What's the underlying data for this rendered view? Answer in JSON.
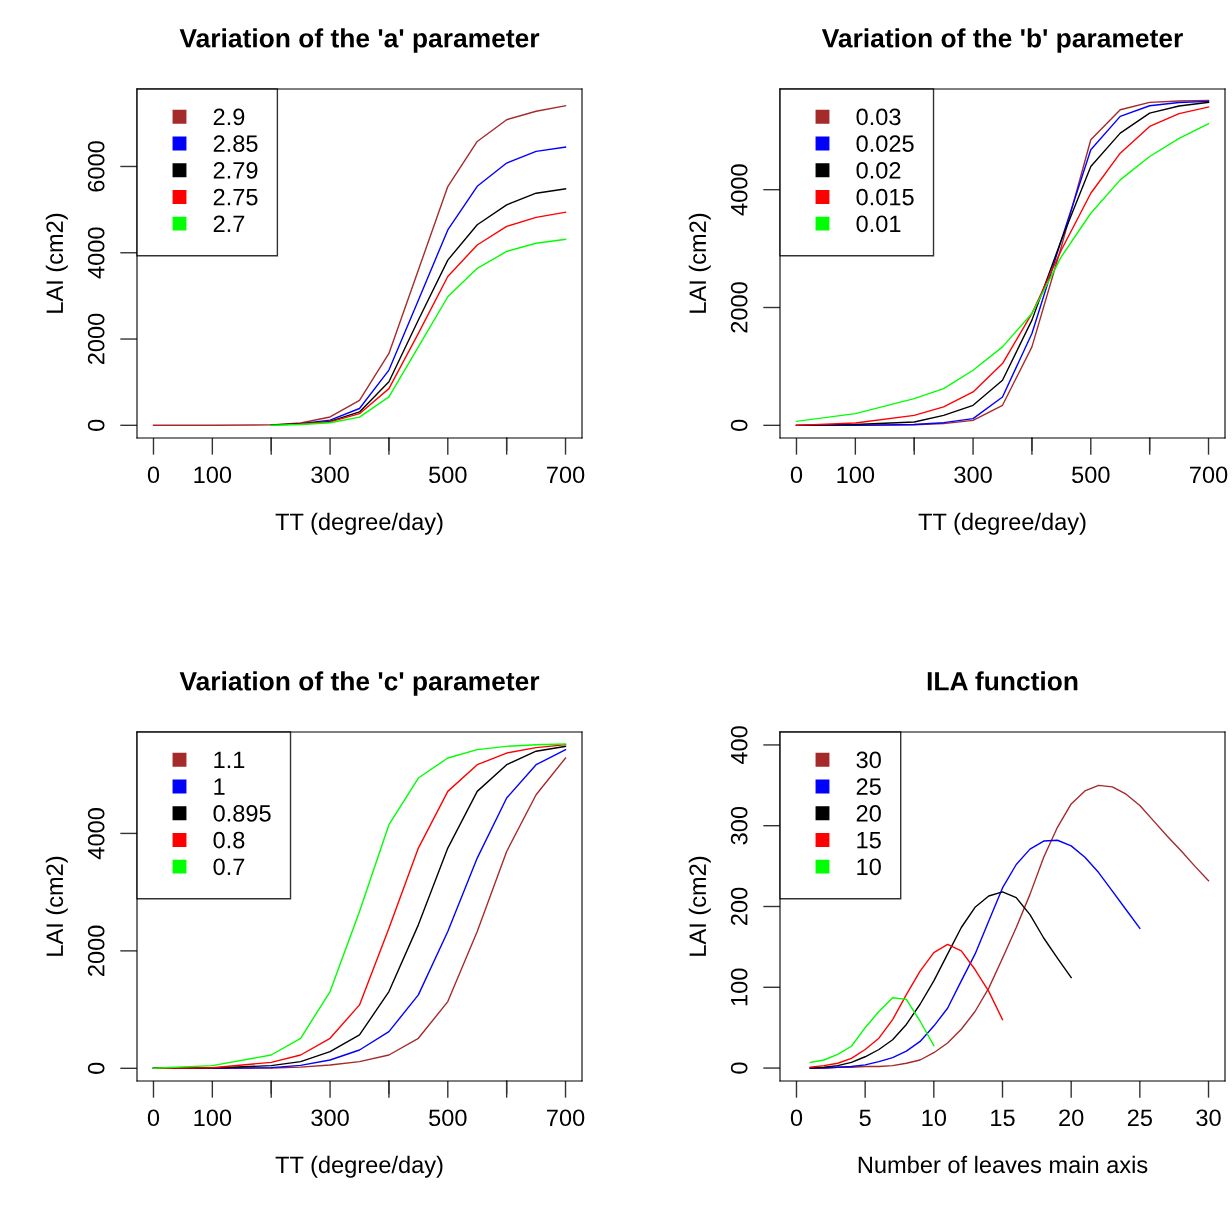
{
  "chart_data": [
    {
      "type": "line",
      "title": "Variation of the 'a' parameter",
      "xlabel": "TT (degree/day)",
      "ylabel": "LAI (cm2)",
      "legend": "top left",
      "grid": false,
      "x": [
        0,
        100,
        200,
        250,
        300,
        350,
        400,
        450,
        500,
        550,
        600,
        650,
        700
      ],
      "xlim": [
        -28,
        728
      ],
      "xticks": [
        0,
        100,
        {
          "value": 200,
          "label": null
        },
        300,
        {
          "value": 400,
          "label": null
        },
        500,
        {
          "value": 600,
          "label": null
        },
        700
      ],
      "ylim": [
        -294,
        7796
      ],
      "yticks": [
        0,
        2000,
        4000,
        6000
      ],
      "series": [
        {
          "name": "2.9",
          "color": "#a52a2a",
          "values": [
            0,
            0,
            10,
            54,
            194,
            580,
            1665,
            3600,
            5535,
            6580,
            7084,
            7280,
            7409
          ]
        },
        {
          "name": "2.85",
          "color": "#0000ff",
          "values": [
            null,
            null,
            null,
            40,
            120,
            390,
            1280,
            2900,
            4530,
            5540,
            6080,
            6350,
            6450
          ]
        },
        {
          "name": "2.79",
          "color": "#000000",
          "values": [
            null,
            null,
            10,
            30,
            90,
            310,
            1010,
            2440,
            3830,
            4650,
            5110,
            5380,
            5480
          ]
        },
        {
          "name": "2.75",
          "color": "#ff0000",
          "values": [
            null,
            null,
            null,
            30,
            80,
            270,
            850,
            2130,
            3450,
            4180,
            4610,
            4820,
            4940
          ]
        },
        {
          "name": "2.7",
          "color": "#00ff00",
          "values": [
            null,
            null,
            0,
            20,
            60,
            190,
            660,
            1820,
            2980,
            3640,
            4030,
            4220,
            4310
          ]
        }
      ]
    },
    {
      "type": "line",
      "title": "Variation of the 'b' parameter",
      "xlabel": "TT (degree/day)",
      "ylabel": "LAI (cm2)",
      "legend": "top left",
      "grid": false,
      "x": [
        0,
        100,
        200,
        250,
        300,
        350,
        400,
        450,
        500,
        550,
        600,
        650,
        700
      ],
      "xlim": [
        -28,
        728
      ],
      "xticks": [
        0,
        100,
        {
          "value": 200,
          "label": null
        },
        300,
        {
          "value": 400,
          "label": null
        },
        500,
        {
          "value": 600,
          "label": null
        },
        700
      ],
      "ylim": [
        -215,
        5709
      ],
      "yticks": [
        0,
        2000,
        4000
      ],
      "series": [
        {
          "name": "0.03",
          "color": "#a52a2a",
          "values": [
            0,
            0,
            10,
            30,
            85,
            340,
            1332,
            3033,
            4847,
            5357,
            5482,
            5505,
            5516
          ]
        },
        {
          "name": "0.025",
          "color": "#0000ff",
          "values": [
            0,
            0,
            15,
            45,
            113,
            482,
            1559,
            3146,
            4677,
            5244,
            5425,
            5480,
            5499
          ]
        },
        {
          "name": "0.02",
          "color": "#000000",
          "values": [
            0,
            15,
            57,
            170,
            340,
            765,
            1786,
            3146,
            4393,
            4960,
            5300,
            5420,
            5482
          ]
        },
        {
          "name": "0.015",
          "color": "#ff0000",
          "values": [
            0,
            40,
            170,
            312,
            567,
            1049,
            1899,
            2976,
            3940,
            4620,
            5074,
            5290,
            5403
          ]
        },
        {
          "name": "0.01",
          "color": "#00ff00",
          "values": [
            68,
            198,
            454,
            624,
            935,
            1332,
            1899,
            2863,
            3600,
            4167,
            4563,
            4870,
            5119
          ]
        }
      ]
    },
    {
      "type": "line",
      "title": "Variation of the 'c' parameter",
      "xlabel": "TT (degree/day)",
      "ylabel": "LAI (cm2)",
      "legend": "top left",
      "grid": false,
      "x": [
        0,
        100,
        200,
        250,
        300,
        350,
        400,
        450,
        500,
        550,
        600,
        650,
        700
      ],
      "xlim": [
        -28,
        728
      ],
      "xticks": [
        0,
        100,
        {
          "value": 200,
          "label": null
        },
        300,
        {
          "value": 400,
          "label": null
        },
        500,
        {
          "value": 600,
          "label": null
        },
        700
      ],
      "ylim": [
        -216,
        5727
      ],
      "yticks": [
        0,
        2000,
        4000
      ],
      "series": [
        {
          "name": "1.1",
          "color": "#a52a2a",
          "values": [
            0,
            0,
            5,
            20,
            57,
            114,
            227,
            511,
            1136,
            2330,
            3693,
            4659,
            5284
          ]
        },
        {
          "name": "1",
          "color": "#0000ff",
          "values": [
            0,
            0,
            11,
            50,
            142,
            312,
            625,
            1250,
            2330,
            3580,
            4602,
            5170,
            5426
          ]
        },
        {
          "name": "0.895",
          "color": "#000000",
          "values": [
            0,
            5,
            45,
            114,
            284,
            568,
            1307,
            2443,
            3750,
            4716,
            5170,
            5400,
            5483
          ]
        },
        {
          "name": "0.8",
          "color": "#ff0000",
          "values": [
            0,
            10,
            102,
            227,
            511,
            1080,
            2386,
            3750,
            4716,
            5170,
            5369,
            5460,
            5511
          ]
        },
        {
          "name": "0.7",
          "color": "#00ff00",
          "values": [
            0,
            45,
            227,
            511,
            1307,
            2670,
            4148,
            4943,
            5284,
            5426,
            5483,
            5510,
            5523
          ]
        }
      ]
    },
    {
      "type": "line",
      "title": "ILA function",
      "xlabel": "Number of leaves main axis",
      "ylabel": "LAI (cm2)",
      "legend": "top left",
      "grid": false,
      "xlim": [
        -1.2,
        31.2
      ],
      "xticks": [
        0,
        5,
        10,
        15,
        20,
        25,
        30
      ],
      "ylim": [
        -16,
        416
      ],
      "yticks": [
        0,
        100,
        200,
        300,
        400
      ],
      "series": [
        {
          "name": "30",
          "color": "#a52a2a",
          "x": [
            1,
            2,
            3,
            4,
            5,
            6,
            7,
            8,
            9,
            10,
            11,
            12,
            13,
            14,
            15,
            16,
            17,
            18,
            19,
            20,
            21,
            22,
            23,
            24,
            25,
            26,
            27,
            28,
            29,
            30
          ],
          "values": [
            0,
            0,
            1,
            1,
            2,
            2,
            3,
            6,
            10,
            19,
            31,
            48,
            70,
            99,
            136,
            174,
            215,
            261,
            298,
            327,
            343,
            350,
            348,
            339,
            325,
            306,
            287,
            269,
            250,
            232
          ]
        },
        {
          "name": "25",
          "color": "#0000ff",
          "x": [
            1,
            2,
            3,
            4,
            5,
            6,
            7,
            8,
            9,
            10,
            11,
            12,
            13,
            14,
            15,
            16,
            17,
            18,
            19,
            20,
            21,
            22,
            23,
            24,
            25
          ],
          "values": [
            0,
            0,
            1,
            2,
            4,
            8,
            13,
            21,
            33,
            52,
            74,
            108,
            141,
            182,
            223,
            252,
            271,
            281,
            282,
            275,
            261,
            242,
            219,
            196,
            173
          ]
        },
        {
          "name": "20",
          "color": "#000000",
          "x": [
            1,
            2,
            3,
            4,
            5,
            6,
            7,
            8,
            9,
            10,
            11,
            12,
            13,
            14,
            15,
            16,
            17,
            18,
            19,
            20
          ],
          "values": [
            0,
            1,
            3,
            7,
            14,
            23,
            35,
            54,
            79,
            108,
            141,
            174,
            199,
            213,
            218,
            211,
            190,
            161,
            136,
            112
          ]
        },
        {
          "name": "15",
          "color": "#ff0000",
          "x": [
            1,
            2,
            3,
            4,
            5,
            6,
            7,
            8,
            9,
            10,
            11,
            12,
            13,
            14,
            15
          ],
          "values": [
            1,
            3,
            6,
            12,
            23,
            37,
            60,
            91,
            120,
            143,
            153,
            145,
            122,
            95,
            60
          ]
        },
        {
          "name": "10",
          "color": "#00ff00",
          "x": [
            1,
            2,
            3,
            4,
            5,
            6,
            7,
            8,
            9,
            10
          ],
          "values": [
            7,
            10,
            17,
            27,
            50,
            70,
            87,
            85,
            58,
            28
          ]
        }
      ]
    }
  ]
}
